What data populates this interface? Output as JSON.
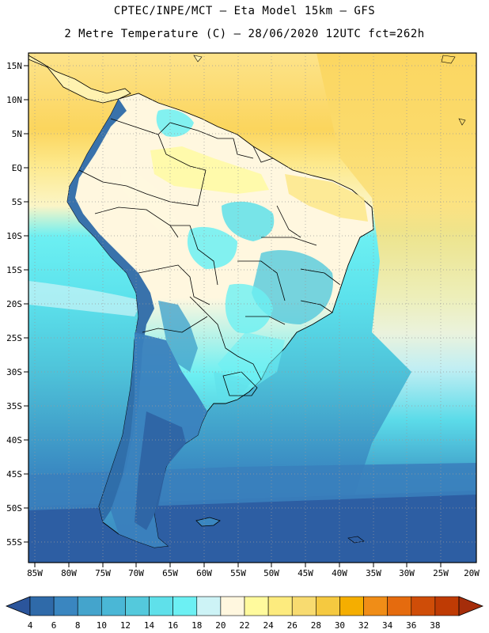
{
  "header": {
    "line1": "CPTEC/INPE/MCT –  Eta Model 15km – GFS",
    "line2": "2 Metre Temperature (C) – 28/06/2020 12UTC fct=262h"
  },
  "map": {
    "lat_labels": [
      "15N",
      "10N",
      "5N",
      "EQ",
      "5S",
      "10S",
      "15S",
      "20S",
      "25S",
      "30S",
      "35S",
      "40S",
      "45S",
      "50S",
      "55S"
    ],
    "lon_labels": [
      "85W",
      "80W",
      "75W",
      "70W",
      "65W",
      "60W",
      "55W",
      "50W",
      "45W",
      "40W",
      "35W",
      "30W",
      "25W",
      "20W"
    ]
  },
  "colorbar": {
    "labels": [
      "4",
      "6",
      "8",
      "10",
      "12",
      "14",
      "16",
      "18",
      "20",
      "22",
      "24",
      "26",
      "28",
      "30",
      "32",
      "34",
      "36",
      "38"
    ],
    "colors": [
      "#2f6aa9",
      "#3a86c0",
      "#44a4cc",
      "#4ab7d6",
      "#54c9dc",
      "#5fe0ea",
      "#6cf0f3",
      "#cdf3f6",
      "#fff7df",
      "#fffa9d",
      "#fdeb7e",
      "#f8db70",
      "#f5c940",
      "#f5ae00",
      "#f08d17",
      "#e56b0e",
      "#cf4d08",
      "#bf3b04"
    ],
    "low_color": "#2b559b",
    "high_color": "#a52d0a"
  },
  "colors": {
    "ocean_cold": "#2f5f9c",
    "ocean_mid": "#4fc0d9",
    "ocean_warm": "#fde67f",
    "land_warm": "#fff7df",
    "andes": "#2e6aa8"
  }
}
